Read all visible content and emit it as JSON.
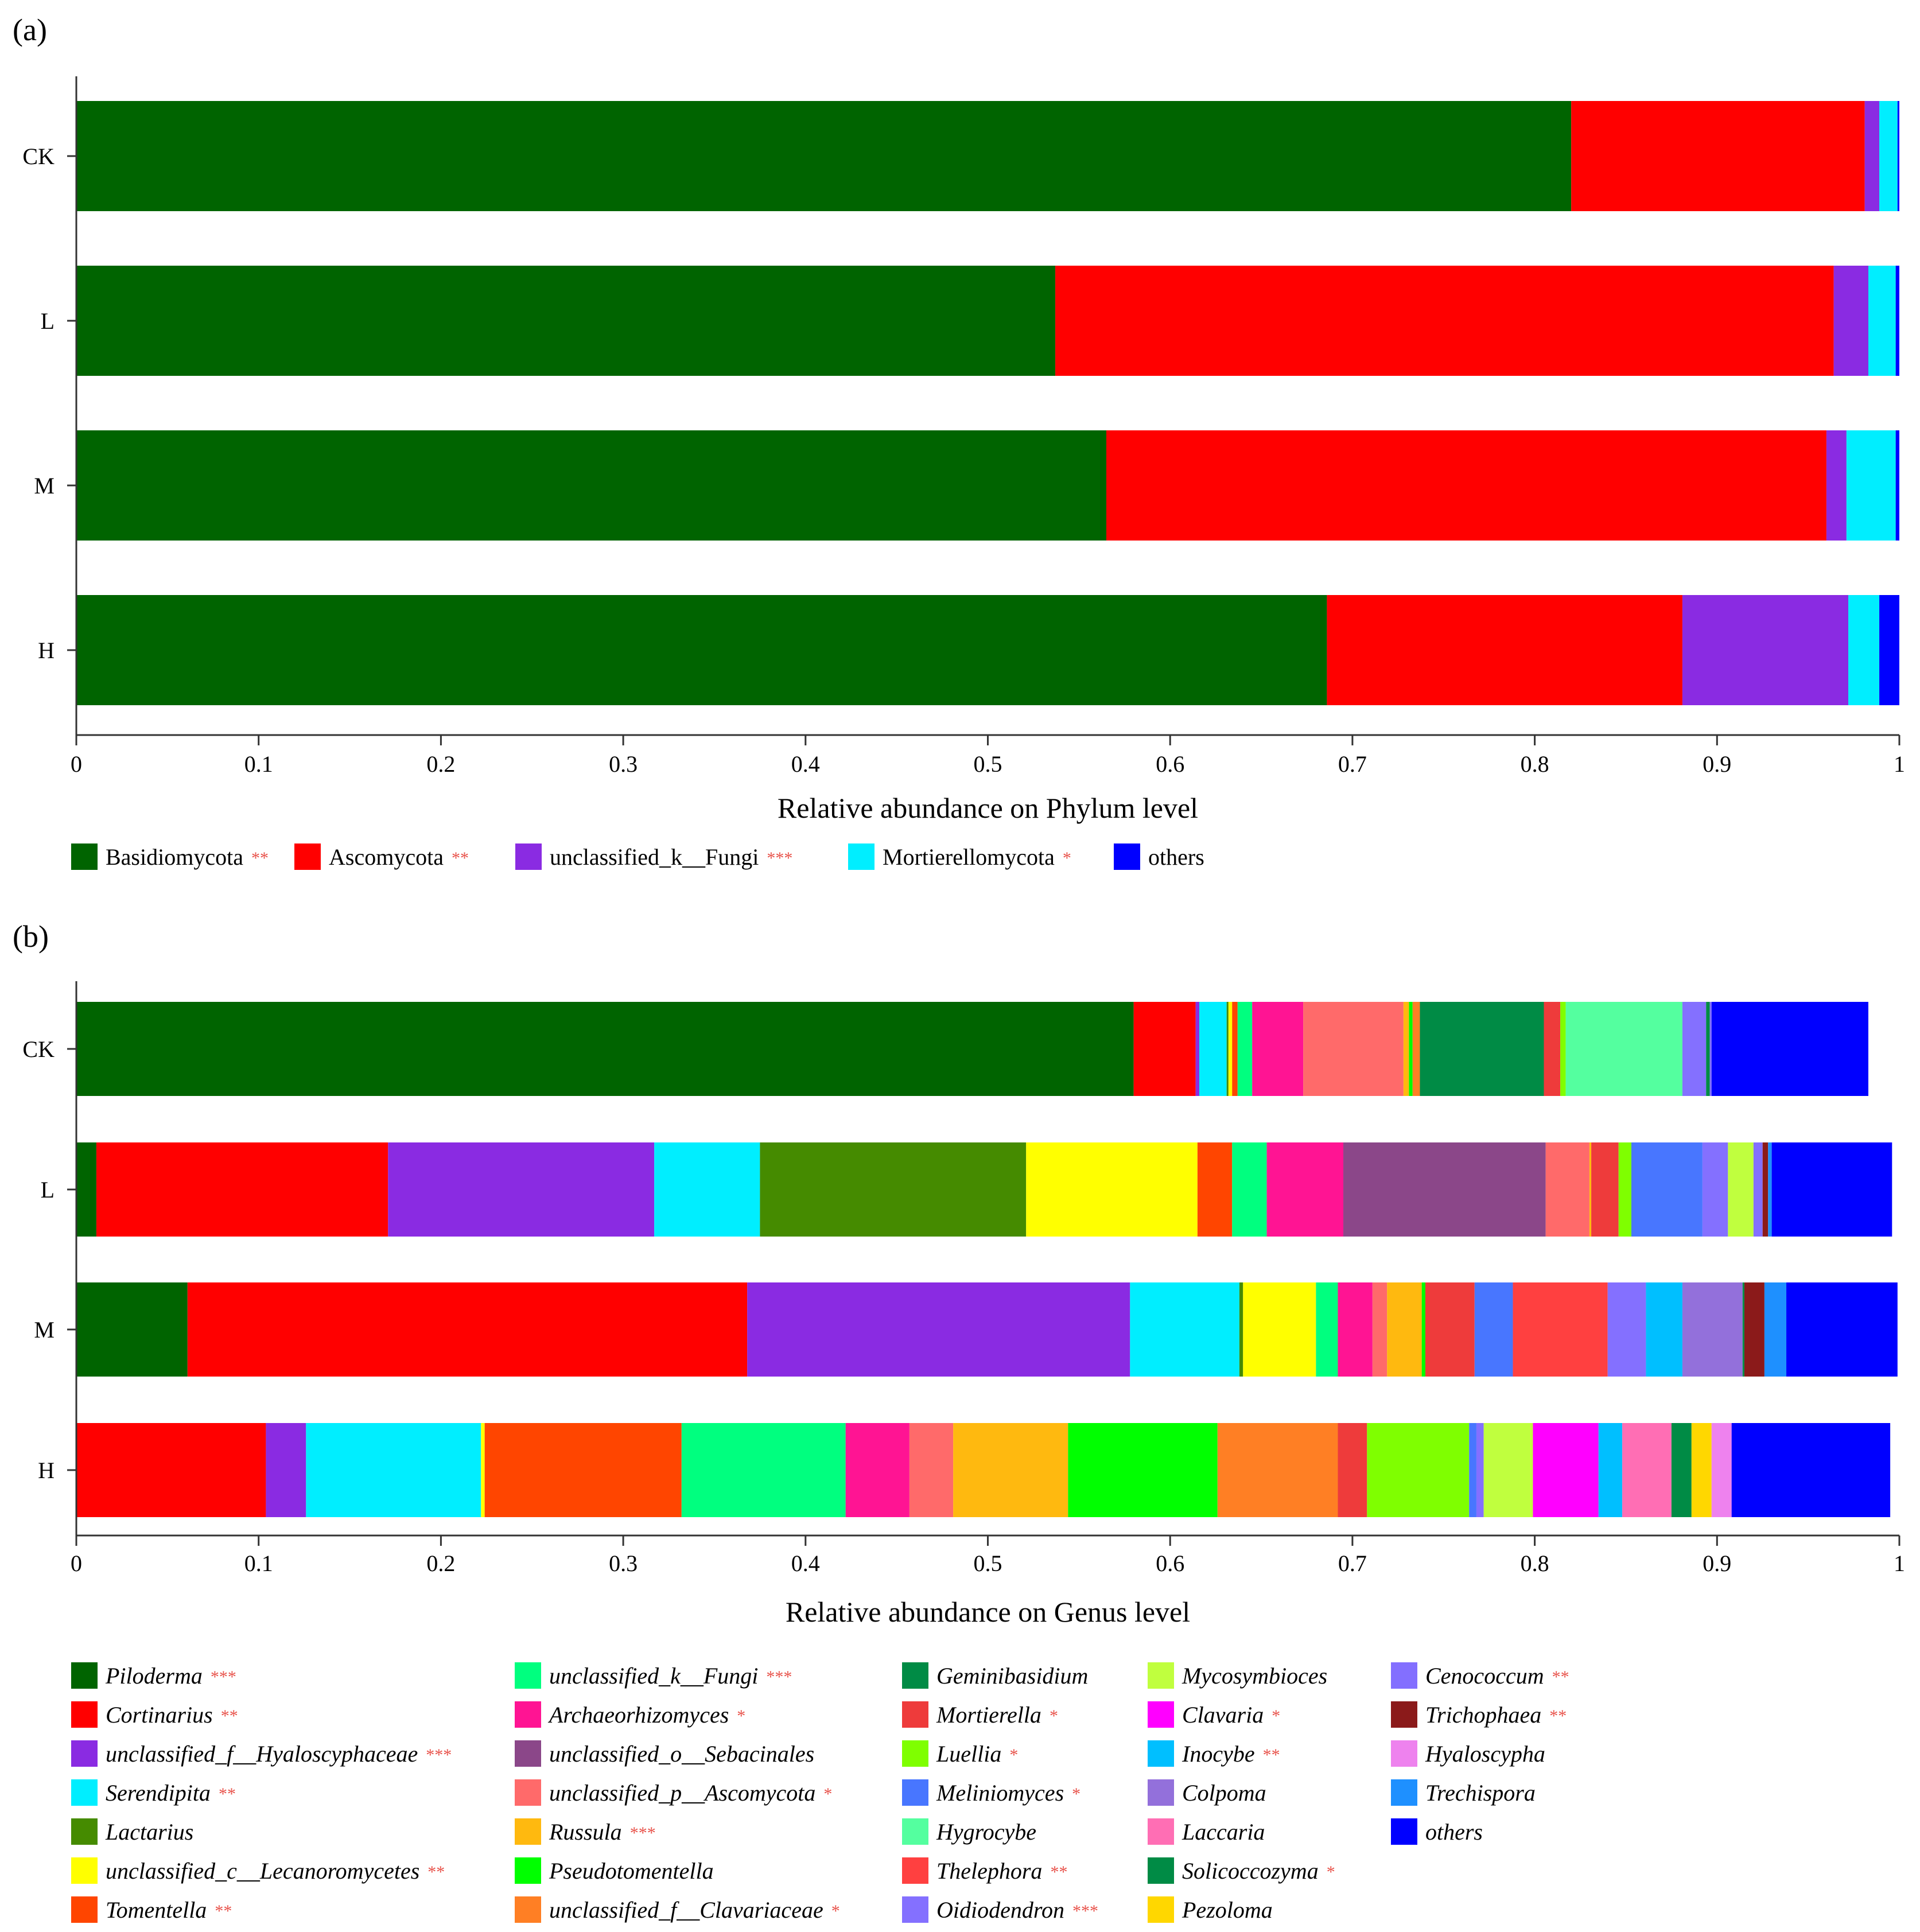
{
  "chart_data": [
    {
      "panel": "(a)",
      "type": "bar",
      "orientation": "horizontal",
      "stacked": true,
      "xlabel": "Relative abundance on Phylum level",
      "xlim": [
        0,
        1
      ],
      "xticks": [
        "0",
        "0.1",
        "0.2",
        "0.3",
        "0.4",
        "0.5",
        "0.6",
        "0.7",
        "0.8",
        "0.9",
        "1"
      ],
      "categories": [
        "CK",
        "L",
        "M",
        "H"
      ],
      "legend_italic": false,
      "series": [
        {
          "name": "Basidiomycota",
          "sig": "**",
          "color": "#006400",
          "values": [
            0.82,
            0.537,
            0.565,
            0.686
          ]
        },
        {
          "name": "Ascomycota",
          "sig": "**",
          "color": "#ff0000",
          "values": [
            0.161,
            0.427,
            0.395,
            0.195
          ]
        },
        {
          "name": "unclassified_k__Fungi",
          "sig": "***",
          "color": "#8a2be2",
          "values": [
            0.008,
            0.019,
            0.011,
            0.091
          ]
        },
        {
          "name": "Mortierellomycota",
          "sig": "*",
          "color": "#00eeff",
          "values": [
            0.01,
            0.015,
            0.027,
            0.017
          ]
        },
        {
          "name": "others",
          "sig": "",
          "color": "#0000ff",
          "values": [
            0.001,
            0.002,
            0.002,
            0.011
          ]
        }
      ]
    },
    {
      "panel": "(b)",
      "type": "bar",
      "orientation": "horizontal",
      "stacked": true,
      "xlabel": "Relative abundance on Genus level",
      "xlim": [
        0,
        1
      ],
      "xticks": [
        "0",
        "0.1",
        "0.2",
        "0.3",
        "0.4",
        "0.5",
        "0.6",
        "0.7",
        "0.8",
        "0.9",
        "1"
      ],
      "categories": [
        "CK",
        "L",
        "M",
        "H"
      ],
      "legend_italic": true,
      "series": [
        {
          "name": "Piloderma",
          "sig": "***",
          "color": "#006400",
          "values": [
            0.58,
            0.011,
            0.061,
            0
          ]
        },
        {
          "name": "Cortinarius",
          "sig": "**",
          "color": "#ff0000",
          "values": [
            0.034,
            0.16,
            0.307,
            0.104
          ]
        },
        {
          "name": "unclassified_f__Hyaloscyphaceae",
          "sig": "***",
          "color": "#8a2be2",
          "values": [
            0.002,
            0.146,
            0.21,
            0.022
          ]
        },
        {
          "name": "Serendipita",
          "sig": "**",
          "color": "#00eeff",
          "values": [
            0.015,
            0.058,
            0.06,
            0.096
          ]
        },
        {
          "name": "Lactarius",
          "sig": "",
          "color": "#458b00",
          "values": [
            0.001,
            0.146,
            0.002,
            0
          ]
        },
        {
          "name": "unclassified_c__Lecanoromycetes",
          "sig": "**",
          "color": "#ffff00",
          "values": [
            0.002,
            0.094,
            0.04,
            0.002
          ]
        },
        {
          "name": "Tomentella",
          "sig": "**",
          "color": "#ff4500",
          "values": [
            0.003,
            0.019,
            0,
            0.108
          ]
        },
        {
          "name": "unclassified_k__Fungi",
          "sig": "***",
          "color": "#00ff7f",
          "values": [
            0.008,
            0.019,
            0.012,
            0.09
          ]
        },
        {
          "name": "Archaeorhizomyces",
          "sig": "*",
          "color": "#ff1493",
          "values": [
            0.028,
            0.042,
            0.019,
            0.035
          ]
        },
        {
          "name": "unclassified_o__Sebacinales",
          "sig": "",
          "color": "#8b4789",
          "values": [
            0,
            0.111,
            0,
            0
          ]
        },
        {
          "name": "unclassified_p__Ascomycota",
          "sig": "*",
          "color": "#ff6a6a",
          "values": [
            0.055,
            0.024,
            0.008,
            0.024
          ]
        },
        {
          "name": "Russula",
          "sig": "***",
          "color": "#ffb90f",
          "values": [
            0.003,
            0.001,
            0.019,
            0.063
          ]
        },
        {
          "name": "Pseudotomentella",
          "sig": "",
          "color": "#00ff00",
          "values": [
            0.002,
            0,
            0.002,
            0.082
          ]
        },
        {
          "name": "unclassified_f__Clavariaceae",
          "sig": "*",
          "color": "#ff7f24",
          "values": [
            0.004,
            0,
            0,
            0.066
          ]
        },
        {
          "name": "Geminibasidium",
          "sig": "",
          "color": "#008b45",
          "values": [
            0.068,
            0,
            0,
            0
          ]
        },
        {
          "name": "Mortierella",
          "sig": "*",
          "color": "#ee3b3b",
          "values": [
            0.009,
            0.015,
            0.027,
            0.016
          ]
        },
        {
          "name": "Luellia",
          "sig": "*",
          "color": "#7fff00",
          "values": [
            0.003,
            0.007,
            0,
            0.056
          ]
        },
        {
          "name": "Meliniomyces",
          "sig": "*",
          "color": "#4876ff",
          "values": [
            0,
            0.039,
            0.021,
            0.004
          ]
        },
        {
          "name": "Hygrocybe",
          "sig": "",
          "color": "#54ff9f",
          "values": [
            0.064,
            0,
            0,
            0
          ]
        },
        {
          "name": "Thelephora",
          "sig": "**",
          "color": "#ff4040",
          "values": [
            0,
            0,
            0.052,
            0
          ]
        },
        {
          "name": "Oidiodendron",
          "sig": "***",
          "color": "#8470ff",
          "values": [
            0.013,
            0.014,
            0.021,
            0.004
          ]
        },
        {
          "name": "Mycosymbioces",
          "sig": "",
          "color": "#c0ff3e",
          "values": [
            0,
            0.014,
            0,
            0.027
          ]
        },
        {
          "name": "Clavaria",
          "sig": "*",
          "color": "#ff00ff",
          "values": [
            0,
            0,
            0,
            0.036
          ]
        },
        {
          "name": "Inocybe",
          "sig": "**",
          "color": "#00bfff",
          "values": [
            0,
            0,
            0.02,
            0.013
          ]
        },
        {
          "name": "Colpoma",
          "sig": "",
          "color": "#9370db",
          "values": [
            0,
            0,
            0.033,
            0
          ]
        },
        {
          "name": "Laccaria",
          "sig": "",
          "color": "#ff6eb4",
          "values": [
            0,
            0,
            0,
            0.027
          ]
        },
        {
          "name": "Solicoccozyma",
          "sig": "*",
          "color": "#008b45",
          "values": [
            0.002,
            0,
            0.001,
            0.011
          ]
        },
        {
          "name": "Pezoloma",
          "sig": "",
          "color": "#ffd700",
          "values": [
            0,
            0,
            0,
            0.011
          ]
        },
        {
          "name": "Cenococcum",
          "sig": "**",
          "color": "#836fff",
          "values": [
            0.001,
            0.005,
            0,
            0
          ]
        },
        {
          "name": "Trichophaea",
          "sig": "**",
          "color": "#8b1a1a",
          "values": [
            0,
            0.003,
            0.011,
            0
          ]
        },
        {
          "name": "Hyaloscypha",
          "sig": "",
          "color": "#ee82ee",
          "values": [
            0,
            0,
            0,
            0.011
          ]
        },
        {
          "name": "Trechispora",
          "sig": "",
          "color": "#1e90ff",
          "values": [
            0,
            0.002,
            0.012,
            0
          ]
        },
        {
          "name": "others",
          "sig": "",
          "color": "#0000ff",
          "values": [
            0.086,
            0.066,
            0.061,
            0.087
          ]
        }
      ]
    }
  ]
}
